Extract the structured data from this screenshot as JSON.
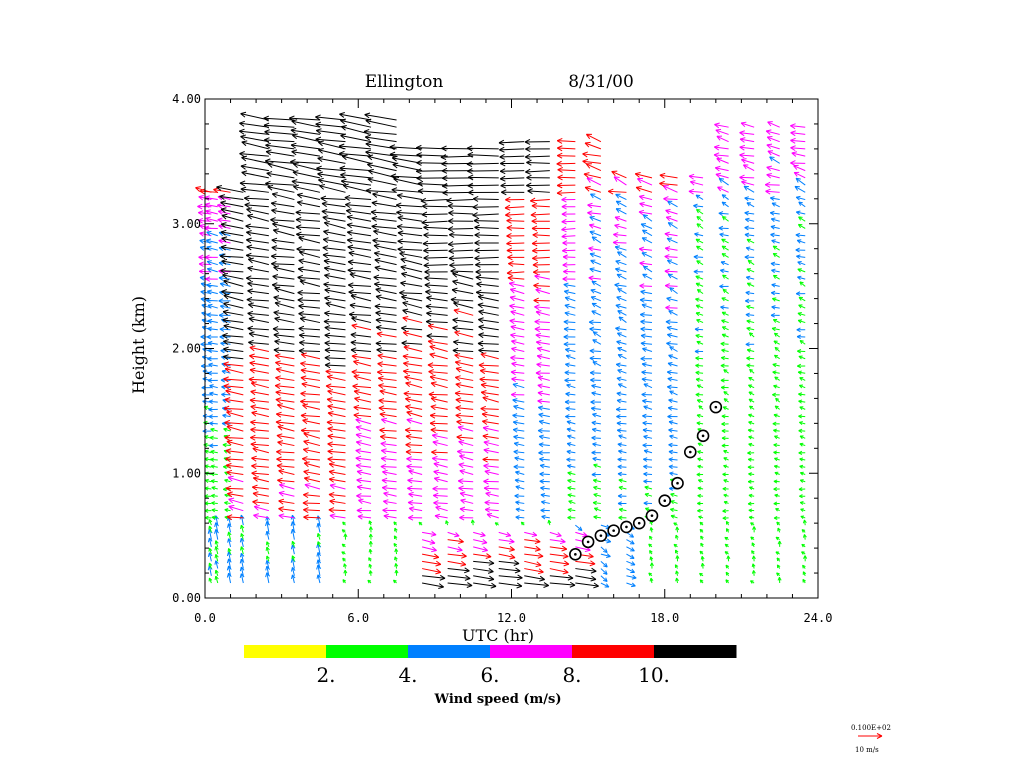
{
  "chart_data": {
    "type": "wind-profiler-barbs",
    "title_site": "Ellington",
    "title_date": "8/31/00",
    "xlabel": "UTC (hr)",
    "ylabel": "Height (km)",
    "xlim": [
      0,
      24
    ],
    "ylim": [
      0,
      4
    ],
    "x_ticks": [
      "0.0",
      "6.0",
      "12.0",
      "18.0",
      "24.0"
    ],
    "x_tick_values": [
      0,
      6,
      12,
      18,
      24
    ],
    "y_ticks": [
      "0.00",
      "1.00",
      "2.00",
      "3.00",
      "4.00"
    ],
    "y_tick_values": [
      0,
      1,
      2,
      3,
      4
    ],
    "colorbar": {
      "title": "Wind speed (m/s)",
      "colors": [
        "#ffff00",
        "#00ff00",
        "#0080ff",
        "#ff00ff",
        "#ff0000",
        "#000000"
      ],
      "labels": [
        "2.",
        "4.",
        "6.",
        "8.",
        "10."
      ],
      "label_values": [
        2,
        4,
        6,
        8,
        10
      ],
      "range": [
        0,
        12
      ]
    },
    "reference_vector": {
      "value_label": "0.100E+02",
      "unit_label": "10 m/s",
      "color": "#ff0000"
    },
    "mixing_height": {
      "utc": [
        14.5,
        15.0,
        15.5,
        16.0,
        16.5,
        17.0,
        17.5,
        18.0,
        18.5,
        19.0,
        19.5,
        20.0
      ],
      "height_km": [
        0.35,
        0.45,
        0.5,
        0.54,
        0.57,
        0.6,
        0.66,
        0.78,
        0.92,
        1.17,
        1.3,
        1.53
      ]
    },
    "profile_times": [
      0.25,
      0.5,
      1.0,
      1.5,
      2.5,
      3.5,
      4.5,
      5.5,
      6.5,
      7.5,
      8.5,
      9.5,
      10.5,
      11.5,
      12.5,
      13.5,
      14.5,
      15.5,
      16.5,
      17.5,
      18.5,
      19.5,
      20.5,
      21.5,
      22.5,
      23.5
    ],
    "wind_field_description": "Columns of wind arrows at roughly hourly intervals from about 0.1 to 4.0 km; arrows colored by speed: light winds near surface, strong (black) westward/north-westward winds aloft during 2-12 UTC, strong eastward low-level jet near 0.2-0.5 km around 9-14 UTC."
  }
}
